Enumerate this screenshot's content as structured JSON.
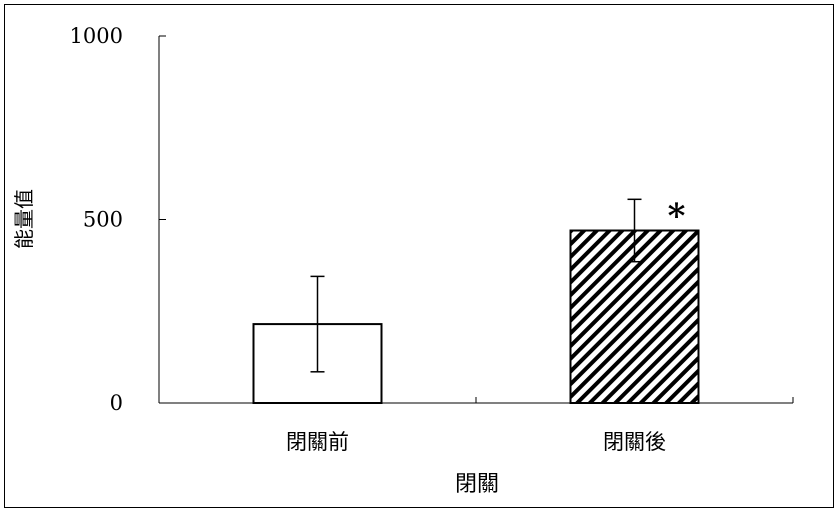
{
  "chart_data": {
    "type": "bar",
    "title": "",
    "xlabel": "閉關",
    "ylabel": "能量值",
    "categories": [
      "閉關前",
      "閉關後"
    ],
    "values": [
      215,
      470
    ],
    "error": [
      130,
      85
    ],
    "annotations": [
      {
        "category": "閉關後",
        "text": "*"
      }
    ],
    "ylim": [
      0,
      1000
    ],
    "yticks": [
      0,
      500,
      1000
    ],
    "grid": false,
    "legend": "none",
    "bar_styles": [
      "plain-white",
      "diagonal-hatch"
    ],
    "colors": {
      "stroke": "#000000",
      "fill": "#ffffff",
      "hatch": "#000000"
    }
  }
}
